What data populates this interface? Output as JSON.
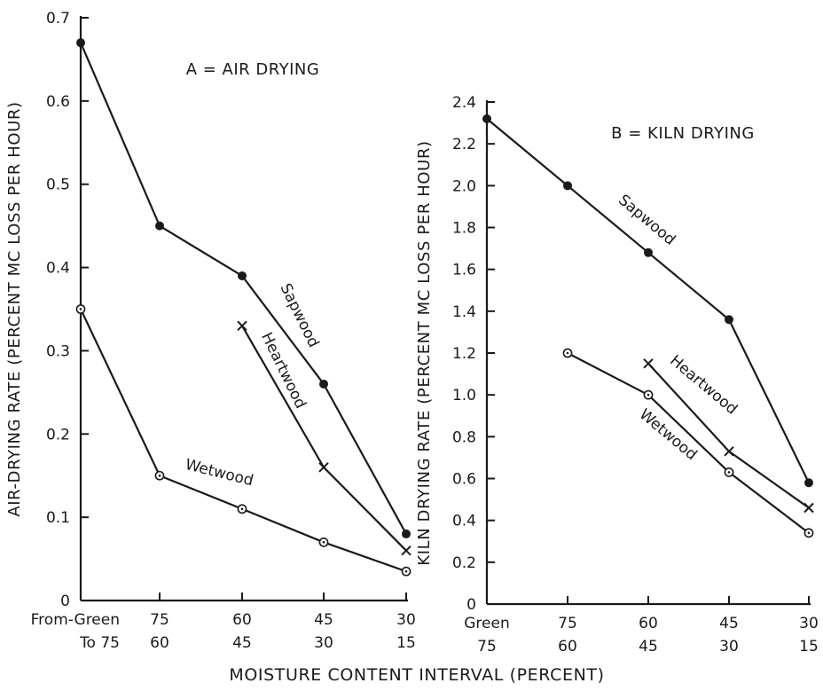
{
  "x_tick_labels": {
    "from": [
      "From-Green",
      "75",
      "60",
      "45",
      "30"
    ],
    "to": [
      "To 75",
      "60",
      "45",
      "30",
      "15"
    ],
    "from_kiln": [
      "Green",
      "75",
      "60",
      "45",
      "30"
    ],
    "to_kiln": [
      "75",
      "60",
      "45",
      "30",
      "15"
    ]
  },
  "shared_xlabel": "MOISTURE  CONTENT   INTERVAL  (PERCENT)",
  "chart_data": [
    {
      "type": "line",
      "title": "A = AIR  DRYING",
      "xlabel": "MOISTURE CONTENT INTERVAL (PERCENT)",
      "ylabel": "AIR-DRYING RATE (PERCENT MC LOSS PER HOUR)",
      "categories": [
        "From-Green To 75",
        "75-60",
        "60-45",
        "45-30",
        "30-15"
      ],
      "ylim": [
        0,
        0.7
      ],
      "yticks": [
        "0",
        "0.1",
        "0.2",
        "0.3",
        "0.4",
        "0.5",
        "0.6",
        "0.7"
      ],
      "grid": false,
      "series": [
        {
          "name": "Sapwood",
          "marker": "filled-circle",
          "values": [
            0.67,
            0.45,
            0.39,
            0.26,
            0.08
          ]
        },
        {
          "name": "Heartwood",
          "marker": "x",
          "values": [
            null,
            null,
            0.33,
            0.16,
            0.06
          ]
        },
        {
          "name": "Wetwood",
          "marker": "dotted-circle",
          "values": [
            0.35,
            0.15,
            0.11,
            0.07,
            0.035
          ]
        }
      ]
    },
    {
      "type": "line",
      "title": "B = KILN  DRYING",
      "xlabel": "MOISTURE CONTENT INTERVAL (PERCENT)",
      "ylabel": "KILN DRYING RATE (PERCENT MC LOSS PER HOUR)",
      "categories": [
        "Green-75",
        "75-60",
        "60-45",
        "45-30",
        "30-15"
      ],
      "ylim": [
        0,
        2.4
      ],
      "yticks": [
        "0",
        "0.2",
        "0.4",
        "0.6",
        "0.8",
        "1.0",
        "1.2",
        "1.4",
        "1.6",
        "1.8",
        "2.0",
        "2.2",
        "2.4"
      ],
      "grid": false,
      "series": [
        {
          "name": "Sapwood",
          "marker": "filled-circle",
          "values": [
            2.32,
            2.0,
            1.68,
            1.36,
            0.58
          ]
        },
        {
          "name": "Heartwood",
          "marker": "x",
          "values": [
            null,
            null,
            1.15,
            0.73,
            0.46
          ]
        },
        {
          "name": "Wetwood",
          "marker": "dotted-circle",
          "values": [
            null,
            1.2,
            1.0,
            0.63,
            0.34
          ]
        }
      ]
    }
  ]
}
